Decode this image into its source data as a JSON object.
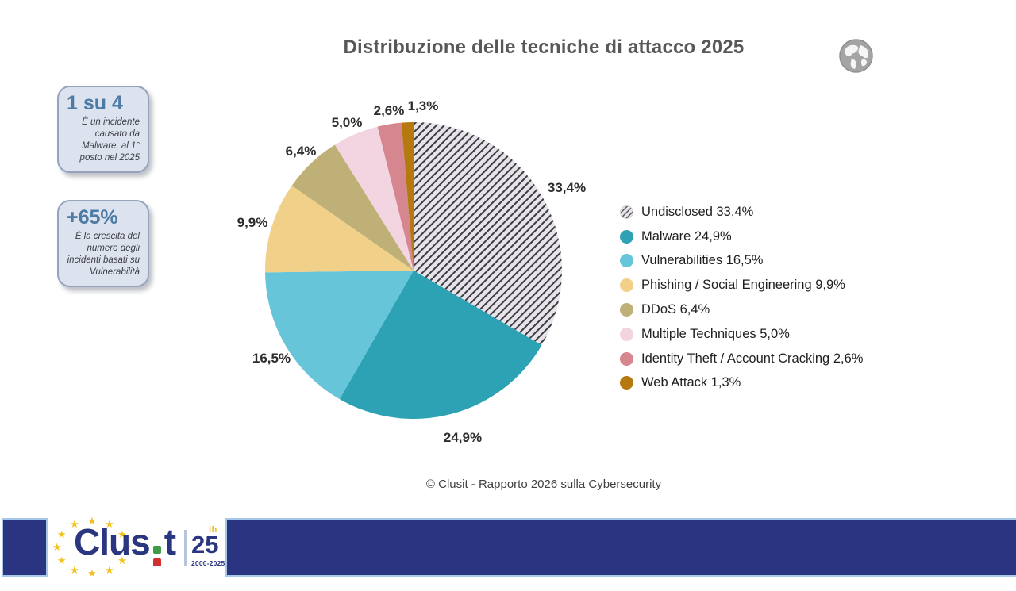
{
  "title": "Distribuzione delle tecniche di attacco 2025",
  "callouts": [
    {
      "headline": "1 su 4",
      "body": "È un incidente causato da Malware, al 1° posto nel 2025"
    },
    {
      "headline": "+65%",
      "body": "È la crescita del numero degli incidenti basati su Vulnerabilità"
    }
  ],
  "chart_data": {
    "type": "pie",
    "title": "Distribuzione delle tecniche di attacco 2025",
    "start_angle_deg": 0,
    "direction": "clockwise",
    "legend_position": "right",
    "slices": [
      {
        "label": "Undisclosed",
        "value": 33.4,
        "display": "33,4%",
        "color": "#e7e3e7",
        "pattern": "diagonal-hatch",
        "pattern_color": "#3b3b45"
      },
      {
        "label": "Malware",
        "value": 24.9,
        "display": "24,9%",
        "color": "#2da2b4"
      },
      {
        "label": "Vulnerabilities",
        "value": 16.5,
        "display": "16,5%",
        "color": "#66c5d9"
      },
      {
        "label": "Phishing / Social Engineering",
        "value": 9.9,
        "display": "9,9%",
        "color": "#f1d08a"
      },
      {
        "label": "DDoS",
        "value": 6.4,
        "display": "6,4%",
        "color": "#bfb077"
      },
      {
        "label": "Multiple Techniques",
        "value": 5.0,
        "display": "5,0%",
        "color": "#f2d5e0"
      },
      {
        "label": "Identity Theft / Account Cracking",
        "value": 2.6,
        "display": "2,6%",
        "color": "#d5868e"
      },
      {
        "label": "Web Attack",
        "value": 1.3,
        "display": "1,3%",
        "color": "#b5790f"
      }
    ]
  },
  "footnote": "© Clusit - Rapporto 2026 sulla Cybersecurity",
  "footer": {
    "logo_text_prefix": "Clus",
    "logo_text_suffix": "t",
    "anniversary_number": "25",
    "anniversary_suffix": "th",
    "anniversary_years": "2000-2025"
  },
  "icons": {
    "globe": "gray-earth-globe",
    "footer_star": "★"
  },
  "colors": {
    "navy": "#2b3480",
    "accent_blue": "#4c7ba6",
    "title_gray": "#58585a",
    "star_yellow": "#f2c21c",
    "logo_green": "#3f9b47",
    "logo_red": "#d22f2f",
    "callout_bg": "#dde3ee",
    "callout_border": "#96a3bc"
  }
}
